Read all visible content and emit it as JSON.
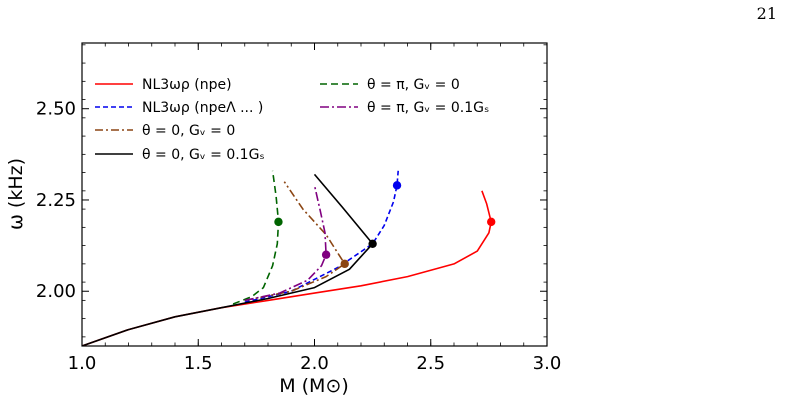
{
  "page": {
    "number": "21"
  },
  "chart_data": {
    "type": "line",
    "title": "",
    "xlabel": "M (M⊙)",
    "ylabel": "ω (kHz)",
    "xlim": [
      1.0,
      3.0
    ],
    "ylim": [
      1.85,
      2.68
    ],
    "xticks": [
      "1.0",
      "1.5",
      "2.0",
      "2.5",
      "3.0"
    ],
    "yticks": [
      "2.00",
      "2.25",
      "2.50"
    ],
    "legend_position": "top-left",
    "series": [
      {
        "name": "NL3ωρ (npe)",
        "color": "#ff0000",
        "dash": "solid",
        "x": [
          1.0,
          1.2,
          1.4,
          1.6,
          1.8,
          2.0,
          2.2,
          2.4,
          2.6,
          2.7,
          2.75,
          2.76,
          2.74,
          2.72
        ],
        "y": [
          1.85,
          1.895,
          1.93,
          1.955,
          1.975,
          1.995,
          2.015,
          2.04,
          2.075,
          2.11,
          2.16,
          2.19,
          2.24,
          2.275
        ],
        "marker": {
          "x": 2.76,
          "y": 2.19
        }
      },
      {
        "name": "NL3ωρ (npeΛ ... )",
        "color": "#0000ee",
        "dash": "5,3",
        "x": [
          1.7,
          1.9,
          2.1,
          2.25,
          2.3,
          2.34,
          2.355,
          2.36
        ],
        "y": [
          1.97,
          2.0,
          2.065,
          2.13,
          2.18,
          2.245,
          2.29,
          2.33
        ],
        "marker": {
          "x": 2.355,
          "y": 2.29
        }
      },
      {
        "name": "θ = 0,  Gᵥ = 0",
        "color": "#8b4513",
        "dash": "8,3,2,3",
        "x": [
          1.7,
          1.9,
          2.05,
          2.13,
          2.05,
          1.95,
          1.87
        ],
        "y": [
          1.975,
          2.0,
          2.04,
          2.075,
          2.155,
          2.225,
          2.3
        ],
        "marker": {
          "x": 2.13,
          "y": 2.075
        }
      },
      {
        "name": "θ = 0,  Gᵥ = 0.1Gₛ",
        "color": "#000000",
        "dash": "solid",
        "x": [
          1.0,
          1.2,
          1.4,
          1.6,
          1.8,
          2.0,
          2.15,
          2.25,
          2.12,
          2.0
        ],
        "y": [
          1.85,
          1.895,
          1.93,
          1.955,
          1.98,
          2.01,
          2.06,
          2.13,
          2.23,
          2.32
        ],
        "marker": {
          "x": 2.25,
          "y": 2.13
        }
      },
      {
        "name": "θ = π,  Gᵥ = 0",
        "color": "#006400",
        "dash": "7,4",
        "x": [
          1.65,
          1.73,
          1.78,
          1.82,
          1.84,
          1.845,
          1.835,
          1.82
        ],
        "y": [
          1.965,
          1.985,
          2.01,
          2.07,
          2.13,
          2.19,
          2.26,
          2.33
        ],
        "marker": {
          "x": 1.845,
          "y": 2.19
        }
      },
      {
        "name": "θ = π,  Gᵥ = 0.1Gₛ",
        "color": "#800080",
        "dash": "9,3,2,3",
        "x": [
          1.7,
          1.85,
          1.97,
          2.03,
          2.05,
          2.045,
          2.025,
          2.0
        ],
        "y": [
          1.975,
          1.995,
          2.03,
          2.07,
          2.1,
          2.16,
          2.22,
          2.29
        ],
        "marker": {
          "x": 2.05,
          "y": 2.1
        }
      }
    ]
  }
}
